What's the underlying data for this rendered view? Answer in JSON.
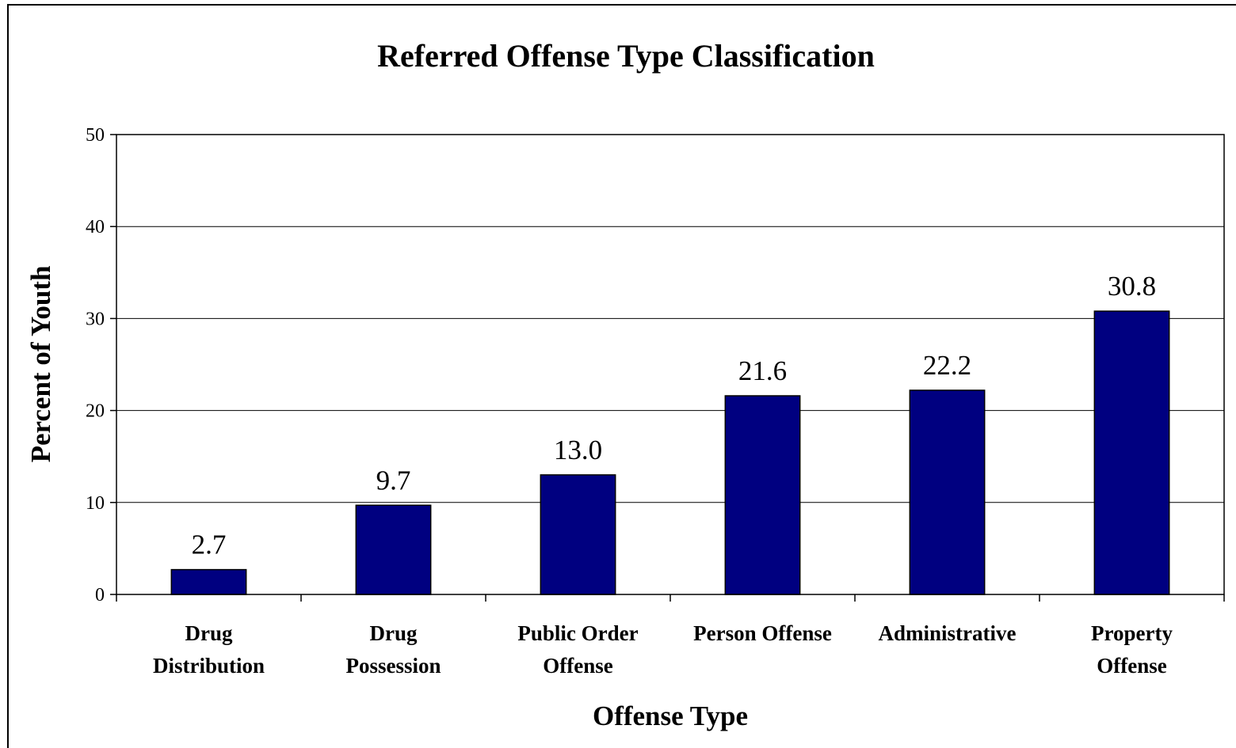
{
  "chart_data": {
    "type": "bar",
    "title": "Referred Offense Type Classification",
    "xlabel": "Offense Type",
    "ylabel": "Percent of Youth",
    "categories": [
      [
        "Drug",
        "Distribution"
      ],
      [
        "Drug",
        "Possession"
      ],
      [
        "Public Order",
        "Offense"
      ],
      [
        "Person Offense"
      ],
      [
        "Administrative"
      ],
      [
        "Property",
        "Offense"
      ]
    ],
    "values": [
      2.7,
      9.7,
      13.0,
      21.6,
      22.2,
      30.8
    ],
    "data_labels": [
      "2.7",
      "9.7",
      "13.0",
      "21.6",
      "22.2",
      "30.8"
    ],
    "ylim": [
      0,
      50
    ],
    "yticks": [
      0,
      10,
      20,
      30,
      40,
      50
    ],
    "grid": true,
    "legend": "none",
    "bar_color": "#000080"
  }
}
